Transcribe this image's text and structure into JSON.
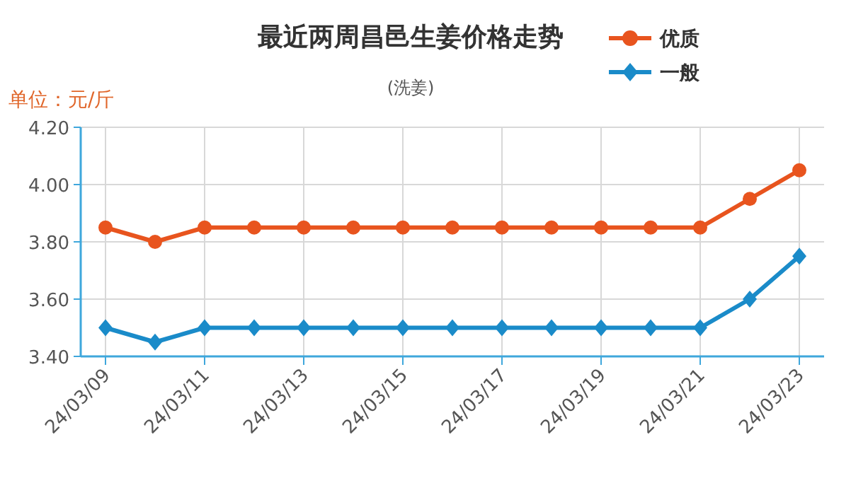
{
  "chart_data": {
    "type": "line",
    "title": "最近两周昌邑生姜价格走势",
    "subtitle": "(洗姜)",
    "ylabel": "单位：元/斤",
    "categories": [
      "24/03/09",
      null,
      "24/03/11",
      null,
      "24/03/13",
      null,
      "24/03/15",
      null,
      "24/03/17",
      null,
      "24/03/19",
      null,
      "24/03/21",
      null,
      "24/03/23"
    ],
    "series": [
      {
        "name": "优质",
        "color": "#e8541e",
        "marker": "circle",
        "values": [
          3.85,
          3.8,
          3.85,
          3.85,
          3.85,
          3.85,
          3.85,
          3.85,
          3.85,
          3.85,
          3.85,
          3.85,
          3.85,
          3.95,
          4.05
        ]
      },
      {
        "name": "一般",
        "color": "#1a8bc9",
        "marker": "diamond",
        "values": [
          3.5,
          3.45,
          3.5,
          3.5,
          3.5,
          3.5,
          3.5,
          3.5,
          3.5,
          3.5,
          3.5,
          3.5,
          3.5,
          3.6,
          3.75
        ]
      }
    ],
    "ylim": [
      3.4,
      4.2
    ],
    "yticks": [
      {
        "value": 3.4,
        "label": "3.40"
      },
      {
        "value": 3.6,
        "label": "3.60"
      },
      {
        "value": 3.8,
        "label": "3.80"
      },
      {
        "value": 4.0,
        "label": "4.00"
      },
      {
        "value": 4.2,
        "label": "4.20"
      }
    ],
    "grid": true,
    "legend": "top right",
    "line_style": "solid"
  }
}
